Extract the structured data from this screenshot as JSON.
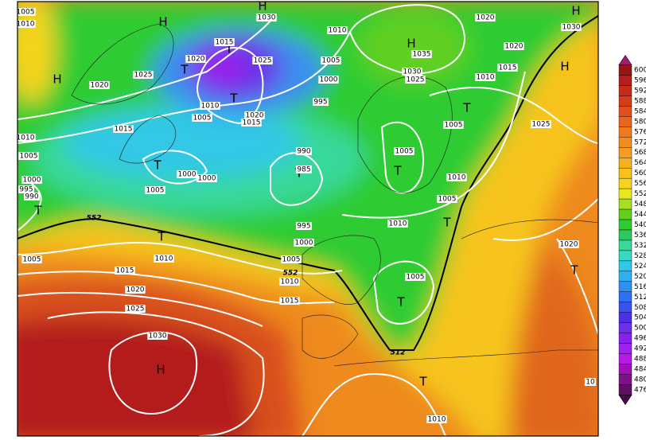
{
  "pressure_centers": [
    "H",
    "H",
    "T",
    "T",
    "H",
    "T",
    "H",
    "H",
    "H",
    "T",
    "T",
    "T",
    "T",
    "T",
    "T",
    "T",
    "T",
    "T",
    "H",
    "T"
  ],
  "isobar_labels": [
    "1005",
    "1010",
    "1030",
    "1015",
    "1020",
    "1025",
    "1025",
    "1020",
    "1010",
    "1005",
    "1000",
    "995",
    "1010",
    "1005",
    "1020",
    "1015",
    "1015",
    "1010",
    "1005",
    "990",
    "985",
    "1000",
    "1000",
    "1005",
    "1000",
    "995",
    "990",
    "995",
    "1000",
    "1005",
    "1010",
    "1015",
    "1005",
    "1010",
    "1015",
    "1020",
    "1025",
    "1030",
    "1020",
    "1030",
    "1035",
    "1030",
    "1025",
    "1010",
    "1015",
    "1020",
    "1025",
    "1005",
    "1005",
    "1010",
    "1005",
    "1010",
    "1005",
    "1020",
    "1010",
    "10"
  ],
  "contour_labels": [
    "552",
    "552",
    "512"
  ],
  "colorbar": {
    "ticks": [
      600,
      596,
      592,
      588,
      584,
      580,
      576,
      572,
      568,
      564,
      560,
      556,
      552,
      548,
      544,
      540,
      536,
      532,
      528,
      524,
      520,
      516,
      512,
      508,
      504,
      500,
      496,
      492,
      488,
      484,
      480,
      476
    ]
  }
}
